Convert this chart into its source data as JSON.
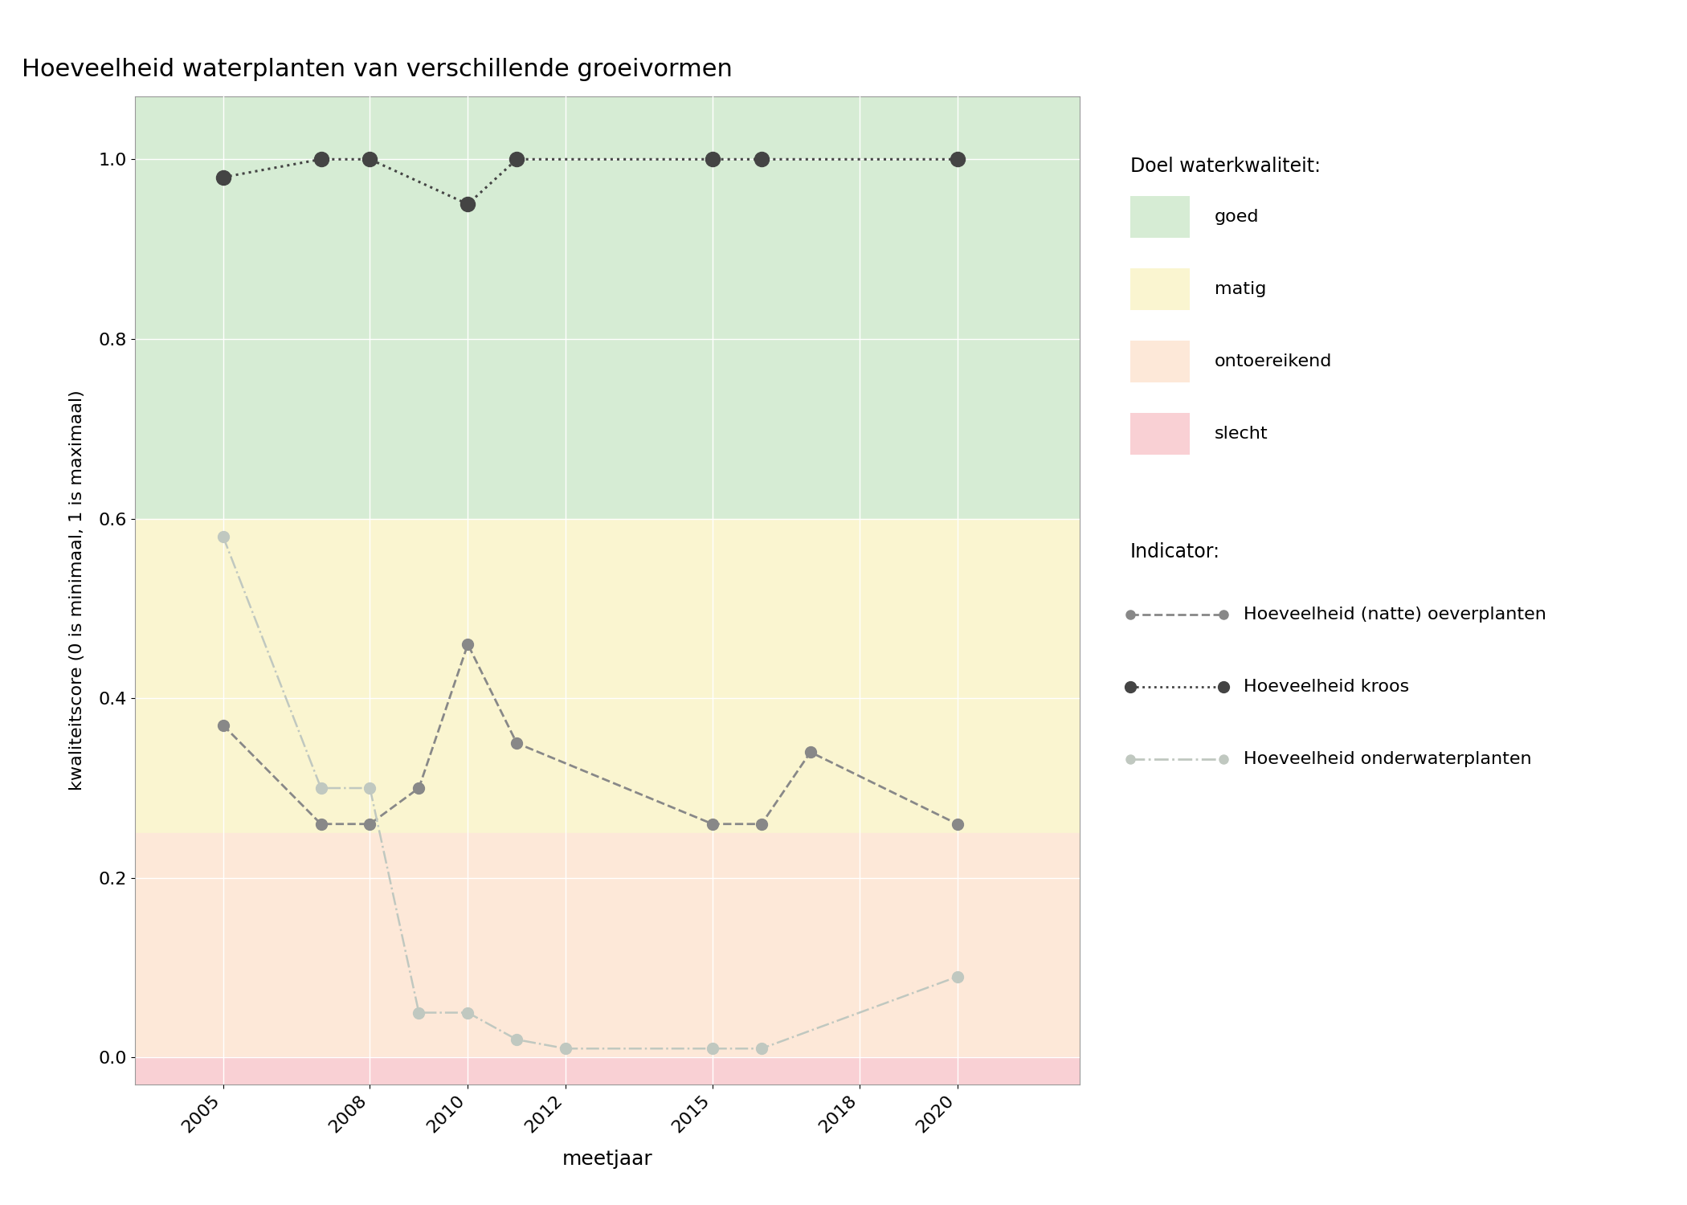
{
  "title": "Hoeveelheid waterplanten van verschillende groeivormen",
  "xlabel": "meetjaar",
  "ylabel": "kwaliteitscore (0 is minimaal, 1 is maximaal)",
  "xlim": [
    2003.2,
    2022.5
  ],
  "ylim": [
    -0.03,
    1.07
  ],
  "xticks": [
    2005,
    2008,
    2010,
    2012,
    2015,
    2018,
    2020
  ],
  "yticks": [
    0.0,
    0.2,
    0.4,
    0.6,
    0.8,
    1.0
  ],
  "fig_facecolor": "#ffffff",
  "ax_facecolor": "#ffffff",
  "zone_goed": [
    0.6,
    1.07
  ],
  "zone_matig": [
    0.25,
    0.6
  ],
  "zone_ontoereikend": [
    0.0,
    0.25
  ],
  "zone_slecht": [
    -0.03,
    0.0
  ],
  "zone_goed_color": "#d6ecd4",
  "zone_matig_color": "#faf5d0",
  "zone_ontoereikend_color": "#fde8d8",
  "zone_slecht_color": "#f9d0d4",
  "series_oever": {
    "label": "Hoeveelheid (natte) oeverplanten",
    "color": "#888888",
    "linestyle": "--",
    "marker": "o",
    "markersize": 10,
    "linewidth": 2.0,
    "x": [
      2005,
      2007,
      2008,
      2009,
      2010,
      2011,
      2015,
      2016,
      2017,
      2020
    ],
    "y": [
      0.37,
      0.26,
      0.26,
      0.3,
      0.46,
      0.35,
      0.26,
      0.26,
      0.34,
      0.26
    ]
  },
  "series_kroos": {
    "label": "Hoeveelheid kroos",
    "color": "#444444",
    "linestyle": ":",
    "marker": "o",
    "markersize": 13,
    "linewidth": 2.2,
    "x": [
      2005,
      2007,
      2008,
      2010,
      2011,
      2015,
      2016,
      2020
    ],
    "y": [
      0.98,
      1.0,
      1.0,
      0.95,
      1.0,
      1.0,
      1.0,
      1.0
    ]
  },
  "series_onder": {
    "label": "Hoeveelheid onderwaterplanten",
    "color": "#c0c8c0",
    "linestyle": "-.",
    "marker": "o",
    "markersize": 10,
    "linewidth": 1.8,
    "x": [
      2005,
      2007,
      2008,
      2009,
      2010,
      2011,
      2012,
      2015,
      2016,
      2020
    ],
    "y": [
      0.58,
      0.3,
      0.3,
      0.05,
      0.05,
      0.02,
      0.01,
      0.01,
      0.01,
      0.09
    ]
  },
  "legend_title_doel": "Doel waterkwaliteit:",
  "legend_labels_doel": [
    "goed",
    "matig",
    "ontoereikend",
    "slecht"
  ],
  "legend_title_indicator": "Indicator:",
  "figsize": [
    21.0,
    15.0
  ],
  "dpi": 100,
  "grid_color": "#e0e0e0",
  "spine_color": "#999999"
}
